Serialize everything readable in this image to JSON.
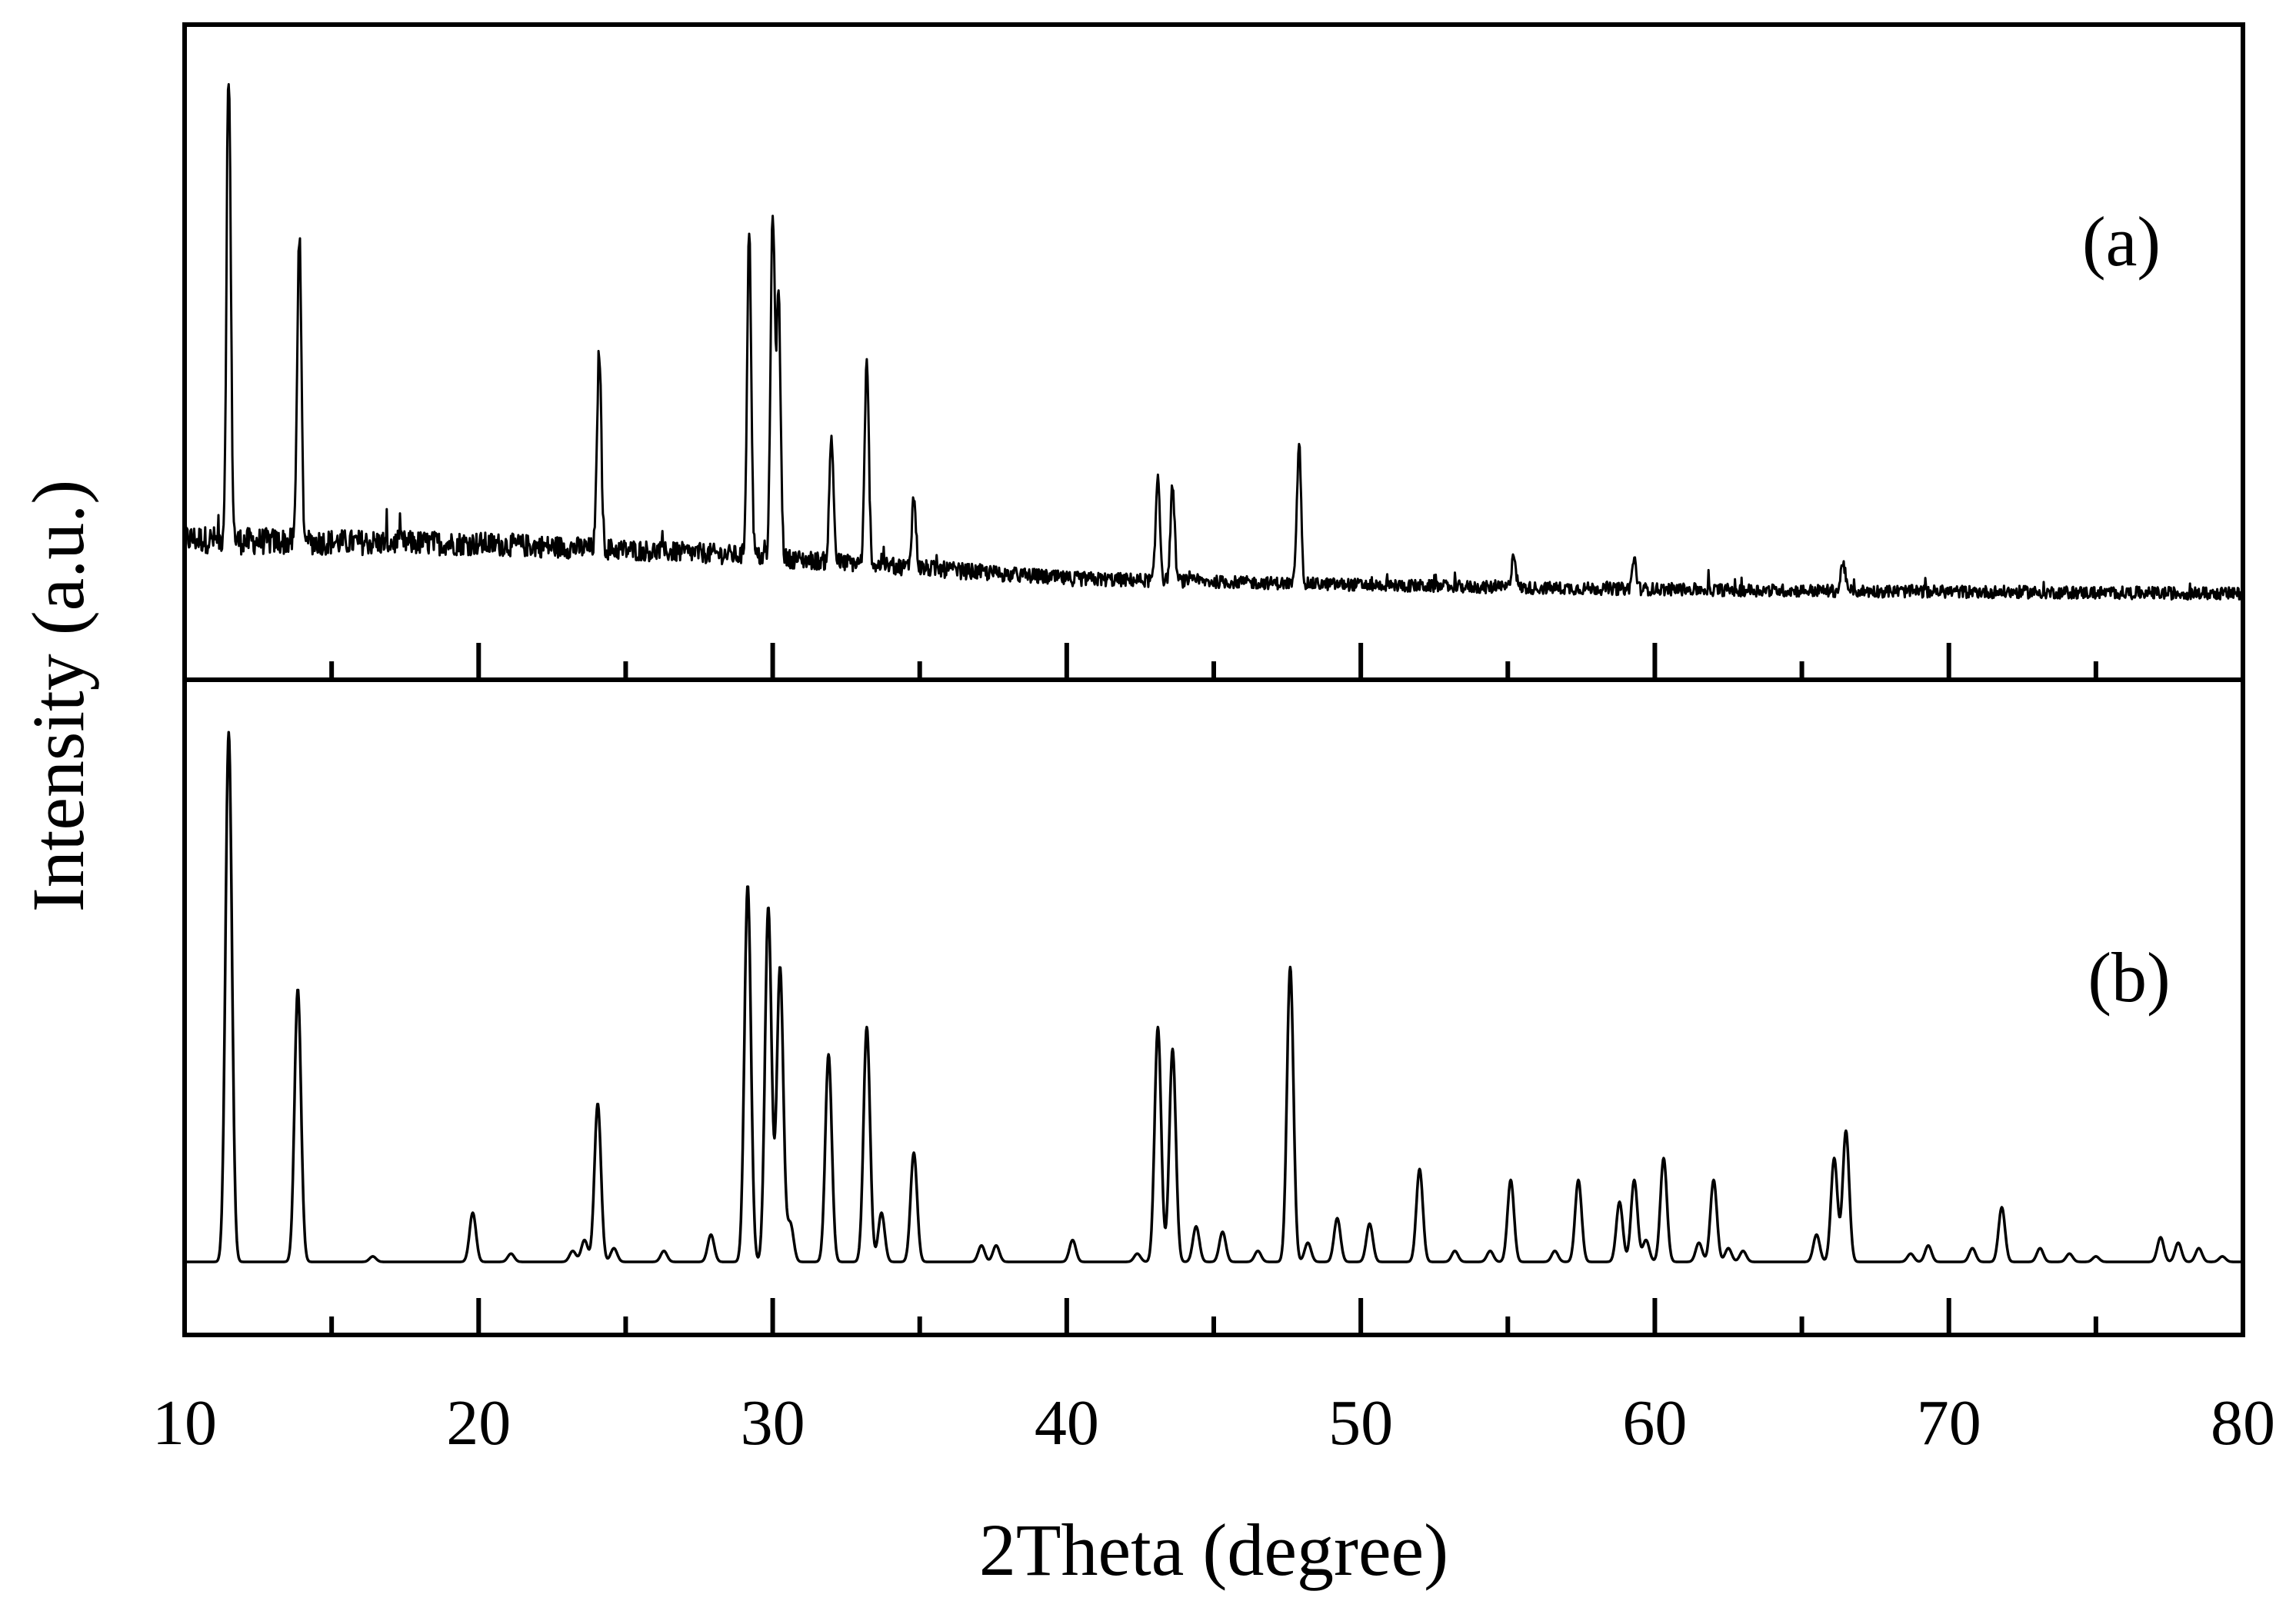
{
  "chart_data": {
    "type": "line",
    "xlabel": "2Theta (degree)",
    "ylabel": "Intensity (a.u.)",
    "xlim": [
      10,
      80
    ],
    "xticks_major": [
      10,
      20,
      30,
      40,
      50,
      60,
      70,
      80
    ],
    "xticks_minor": [
      15,
      25,
      35,
      45,
      55,
      65,
      75
    ],
    "grid": false,
    "line_color": "#000000",
    "panels": [
      {
        "label": "(a)",
        "kind": "experimental",
        "ylim": [
          0,
          100
        ],
        "baseline": {
          "x": [
            10,
            12,
            20,
            28,
            33,
            40,
            48,
            55,
            65,
            80
          ],
          "y": [
            13,
            12.5,
            12,
            10,
            8,
            5,
            4,
            3.2,
            2.6,
            2
          ]
        },
        "noise_amplitude": 2.8,
        "peaks": [
          {
            "x": 11.5,
            "y": 94
          },
          {
            "x": 13.9,
            "y": 62
          },
          {
            "x": 24.1,
            "y": 40
          },
          {
            "x": 29.2,
            "y": 65
          },
          {
            "x": 30.0,
            "y": 69
          },
          {
            "x": 30.2,
            "y": 52
          },
          {
            "x": 32.0,
            "y": 25
          },
          {
            "x": 33.2,
            "y": 40
          },
          {
            "x": 34.8,
            "y": 14
          },
          {
            "x": 43.1,
            "y": 21
          },
          {
            "x": 43.6,
            "y": 19
          },
          {
            "x": 47.9,
            "y": 28
          },
          {
            "x": 55.2,
            "y": 7
          },
          {
            "x": 59.3,
            "y": 6
          },
          {
            "x": 66.4,
            "y": 6
          }
        ]
      },
      {
        "label": "(b)",
        "kind": "simulated",
        "ylim": [
          0,
          100
        ],
        "peaks": [
          {
            "x": 11.5,
            "y": 97
          },
          {
            "x": 13.85,
            "y": 50
          },
          {
            "x": 16.4,
            "y": 1
          },
          {
            "x": 19.8,
            "y": 9
          },
          {
            "x": 21.1,
            "y": 1.5
          },
          {
            "x": 23.2,
            "y": 2
          },
          {
            "x": 23.6,
            "y": 4
          },
          {
            "x": 24.05,
            "y": 29
          },
          {
            "x": 24.6,
            "y": 2.5
          },
          {
            "x": 26.3,
            "y": 2
          },
          {
            "x": 27.9,
            "y": 5
          },
          {
            "x": 29.15,
            "y": 69
          },
          {
            "x": 29.85,
            "y": 65
          },
          {
            "x": 30.25,
            "y": 54
          },
          {
            "x": 30.6,
            "y": 7
          },
          {
            "x": 31.9,
            "y": 38
          },
          {
            "x": 33.2,
            "y": 43
          },
          {
            "x": 33.7,
            "y": 9
          },
          {
            "x": 34.8,
            "y": 20
          },
          {
            "x": 37.1,
            "y": 3
          },
          {
            "x": 37.6,
            "y": 3
          },
          {
            "x": 40.2,
            "y": 4
          },
          {
            "x": 42.4,
            "y": 1.5
          },
          {
            "x": 43.1,
            "y": 43
          },
          {
            "x": 43.6,
            "y": 39
          },
          {
            "x": 44.4,
            "y": 6.5
          },
          {
            "x": 45.3,
            "y": 5.5
          },
          {
            "x": 46.5,
            "y": 2
          },
          {
            "x": 47.6,
            "y": 54
          },
          {
            "x": 48.2,
            "y": 3.5
          },
          {
            "x": 49.2,
            "y": 8
          },
          {
            "x": 50.3,
            "y": 7
          },
          {
            "x": 52.0,
            "y": 17
          },
          {
            "x": 53.2,
            "y": 2
          },
          {
            "x": 54.4,
            "y": 2
          },
          {
            "x": 55.1,
            "y": 15
          },
          {
            "x": 56.6,
            "y": 2
          },
          {
            "x": 57.4,
            "y": 15
          },
          {
            "x": 58.8,
            "y": 11
          },
          {
            "x": 59.3,
            "y": 15
          },
          {
            "x": 59.7,
            "y": 4
          },
          {
            "x": 60.3,
            "y": 19
          },
          {
            "x": 61.5,
            "y": 3.5
          },
          {
            "x": 62.0,
            "y": 15
          },
          {
            "x": 62.5,
            "y": 2.5
          },
          {
            "x": 63.0,
            "y": 2
          },
          {
            "x": 65.5,
            "y": 5
          },
          {
            "x": 66.1,
            "y": 19
          },
          {
            "x": 66.5,
            "y": 24
          },
          {
            "x": 68.7,
            "y": 1.5
          },
          {
            "x": 69.3,
            "y": 3
          },
          {
            "x": 70.8,
            "y": 2.5
          },
          {
            "x": 71.8,
            "y": 10
          },
          {
            "x": 73.1,
            "y": 2.5
          },
          {
            "x": 74.1,
            "y": 1.5
          },
          {
            "x": 75.0,
            "y": 1
          },
          {
            "x": 77.2,
            "y": 4.5
          },
          {
            "x": 77.8,
            "y": 3.5
          },
          {
            "x": 78.5,
            "y": 2.5
          },
          {
            "x": 79.3,
            "y": 1
          }
        ]
      }
    ]
  }
}
